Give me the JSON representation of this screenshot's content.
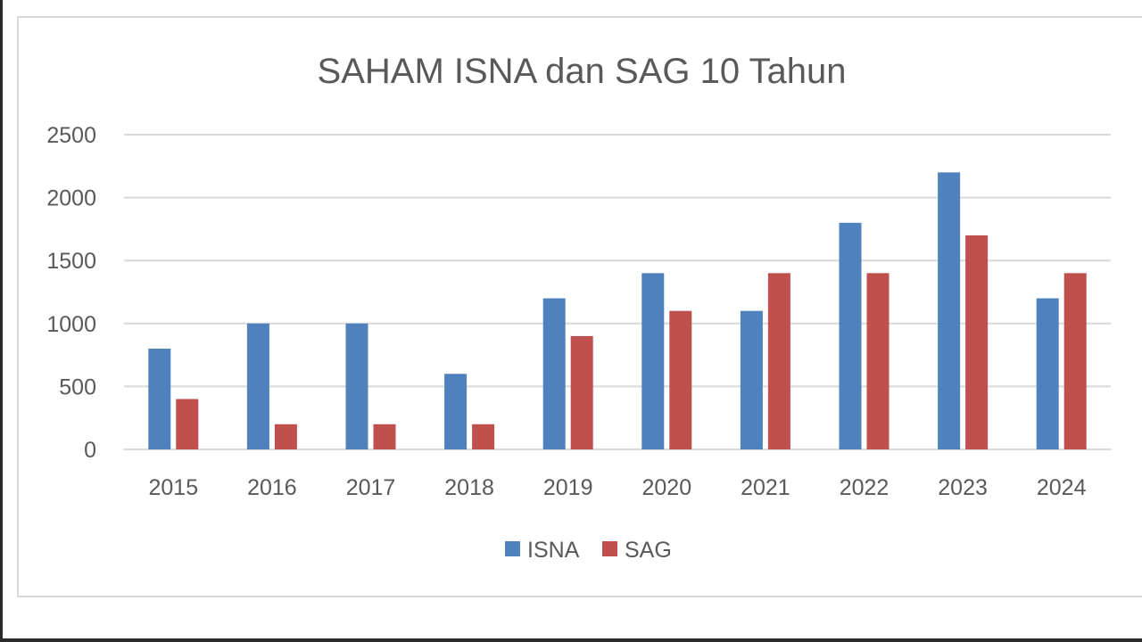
{
  "chart_data": {
    "type": "bar",
    "title": "SAHAM ISNA dan SAG 10 Tahun",
    "categories": [
      "2015",
      "2016",
      "2017",
      "2018",
      "2019",
      "2020",
      "2021",
      "2022",
      "2023",
      "2024"
    ],
    "series": [
      {
        "name": "ISNA",
        "color": "#4f81bd",
        "values": [
          800,
          1000,
          1000,
          600,
          1200,
          1400,
          1100,
          1800,
          2200,
          1200
        ]
      },
      {
        "name": "SAG",
        "color": "#c0504d",
        "values": [
          400,
          200,
          200,
          200,
          900,
          1100,
          1400,
          1400,
          1700,
          1400
        ]
      }
    ],
    "yticks": [
      "0",
      "500",
      "1000",
      "1500",
      "2000",
      "2500"
    ],
    "ylim": [
      0,
      2500
    ],
    "xlabel": "",
    "ylabel": "",
    "grid": true,
    "legend_position": "bottom"
  }
}
